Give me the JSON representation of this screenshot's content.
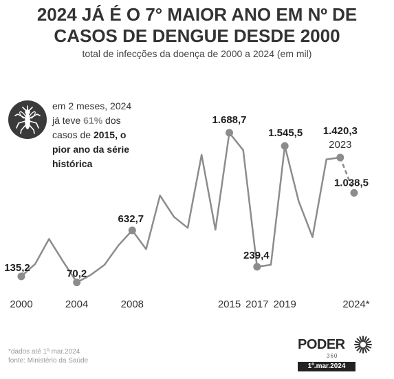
{
  "title_line1": "2024 JÁ É O 7° MAIOR ANO EM Nº DE",
  "title_line2": "CASOS DE DENGUE DESDE 2000",
  "subtitle": "total de infecções da doença de 2000 a 2024 (em mil)",
  "callout": {
    "line1": "em 2 meses, 2024",
    "line2_pre": "já teve ",
    "line2_pct": "61%",
    "line2_post": " dos",
    "line3_pre": "casos de ",
    "line3_bold": "2015, o",
    "line4": "pior ano da série",
    "line5": "histórica",
    "icon": "mosquito-icon"
  },
  "footnote1": "*dados até 1º mar.2024",
  "footnote2": "fonte: Ministério da Saúde",
  "brand": {
    "name": "PODER",
    "sub": "360",
    "date": "1º.mar.2024"
  },
  "chart_data": {
    "type": "line",
    "x": [
      2000,
      2001,
      2002,
      2003,
      2004,
      2005,
      2006,
      2007,
      2008,
      2009,
      2010,
      2011,
      2012,
      2013,
      2014,
      2015,
      2016,
      2017,
      2018,
      2019,
      2020,
      2021,
      2022,
      2023,
      2024
    ],
    "values": [
      135.2,
      270,
      540,
      300,
      70.2,
      150,
      260,
      470,
      632.7,
      430,
      1010,
      780,
      660,
      1450,
      640,
      1688.7,
      1500,
      239.4,
      260,
      1545.5,
      950,
      560,
      1400,
      1420.3,
      1038.5
    ],
    "dashed_from_index": 23,
    "labeled_points": [
      {
        "year": 2000,
        "label": "135,2"
      },
      {
        "year": 2004,
        "label": "70,2"
      },
      {
        "year": 2008,
        "label": "632,7"
      },
      {
        "year": 2015,
        "label": "1.688,7"
      },
      {
        "year": 2017,
        "label": "239,4"
      },
      {
        "year": 2019,
        "label": "1.545,5"
      },
      {
        "year": 2023,
        "label": "1.420,3"
      },
      {
        "year": 2024,
        "label": "1.038,5"
      }
    ],
    "extra_label": {
      "year": 2023,
      "text": "2023"
    },
    "tick_labels": [
      {
        "year": 2000,
        "text": "2000"
      },
      {
        "year": 2004,
        "text": "2004"
      },
      {
        "year": 2008,
        "text": "2008"
      },
      {
        "year": 2015,
        "text": "2015"
      },
      {
        "year": 2017,
        "text": "2017"
      },
      {
        "year": 2019,
        "text": "2019"
      },
      {
        "year": 2024,
        "text": "2024*"
      }
    ],
    "ylim": [
      0,
      1800
    ],
    "grid": false,
    "color": "#8c8c8c"
  }
}
